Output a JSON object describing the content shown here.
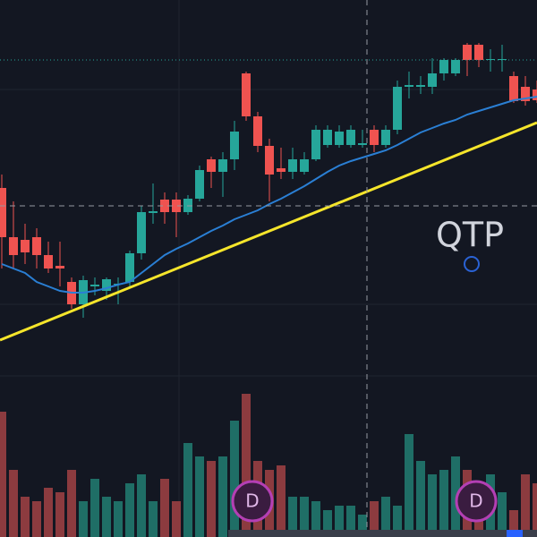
{
  "chart_data": {
    "type": "candlestick",
    "categories": [
      null,
      null,
      null,
      null,
      null,
      null,
      null,
      null,
      null,
      null,
      null,
      null,
      null,
      null,
      null,
      null,
      null,
      null,
      null,
      null,
      null,
      null,
      null,
      null,
      null,
      null,
      null,
      null,
      null,
      null,
      null,
      null,
      null,
      null,
      null,
      null,
      null,
      null,
      null,
      null,
      null,
      null,
      null,
      null,
      null,
      null,
      null
    ],
    "open": [
      390,
      335,
      332,
      335,
      315,
      303,
      285,
      260,
      280,
      275,
      282,
      285,
      317,
      362,
      377,
      377,
      363,
      378,
      422,
      408,
      422,
      518,
      470,
      437,
      412,
      408,
      408,
      422,
      438,
      438,
      438,
      438,
      455,
      438,
      455,
      503,
      503,
      503,
      518,
      518,
      550,
      550,
      533,
      533,
      515,
      503,
      500
    ],
    "high": [
      405,
      375,
      350,
      345,
      330,
      330,
      290,
      292,
      290,
      290,
      290,
      320,
      370,
      395,
      385,
      385,
      382,
      415,
      425,
      430,
      465,
      520,
      475,
      445,
      435,
      435,
      430,
      460,
      460,
      460,
      460,
      455,
      460,
      460,
      510,
      520,
      515,
      535,
      535,
      535,
      552,
      552,
      545,
      550,
      520,
      515,
      510
    ],
    "low": [
      300,
      300,
      305,
      300,
      295,
      280,
      255,
      245,
      270,
      265,
      260,
      280,
      310,
      350,
      350,
      335,
      360,
      375,
      390,
      380,
      410,
      465,
      430,
      375,
      400,
      400,
      405,
      420,
      435,
      435,
      435,
      435,
      430,
      435,
      450,
      490,
      495,
      495,
      510,
      515,
      515,
      525,
      520,
      520,
      485,
      482,
      485
    ],
    "close": [
      335,
      315,
      318,
      315,
      300,
      300,
      260,
      287,
      282,
      288,
      283,
      317,
      363,
      364,
      363,
      363,
      378,
      410,
      408,
      422,
      453,
      470,
      437,
      405,
      408,
      422,
      422,
      455,
      455,
      453,
      455,
      440,
      438,
      455,
      503,
      505,
      505,
      518,
      533,
      533,
      533,
      533,
      534,
      534,
      487,
      487,
      488
    ],
    "up_color": "#26a69a",
    "down_color": "#ef5350",
    "ylim": [
      0,
      600
    ],
    "volume": {
      "values": [
        140,
        75,
        45,
        40,
        55,
        50,
        75,
        40,
        65,
        45,
        40,
        60,
        70,
        40,
        65,
        40,
        105,
        90,
        85,
        90,
        130,
        160,
        85,
        75,
        80,
        45,
        45,
        40,
        30,
        35,
        35,
        25,
        40,
        45,
        35,
        115,
        85,
        70,
        75,
        90,
        75,
        40,
        70,
        50,
        30,
        70,
        60
      ],
      "up_color": "#1f6e66",
      "down_color": "#8c3b3f",
      "axis": "y2"
    },
    "y2lim": [
      0,
      600
    ],
    "series": [
      {
        "name": null,
        "color": "#2a7fd4",
        "values": [
          305,
          300,
          295,
          285,
          280,
          275,
          273,
          273,
          275,
          278,
          282,
          285,
          295,
          305,
          315,
          322,
          328,
          335,
          342,
          348,
          355,
          360,
          365,
          372,
          378,
          385,
          392,
          400,
          408,
          415,
          420,
          424,
          428,
          432,
          438,
          445,
          452,
          457,
          462,
          466,
          472,
          476,
          480,
          484,
          488,
          490,
          492
        ]
      }
    ],
    "trendline": {
      "color": "#f5e52b",
      "values": [
        220,
        463
      ]
    },
    "watermark": "QTP",
    "events": [
      "D",
      "D"
    ]
  }
}
